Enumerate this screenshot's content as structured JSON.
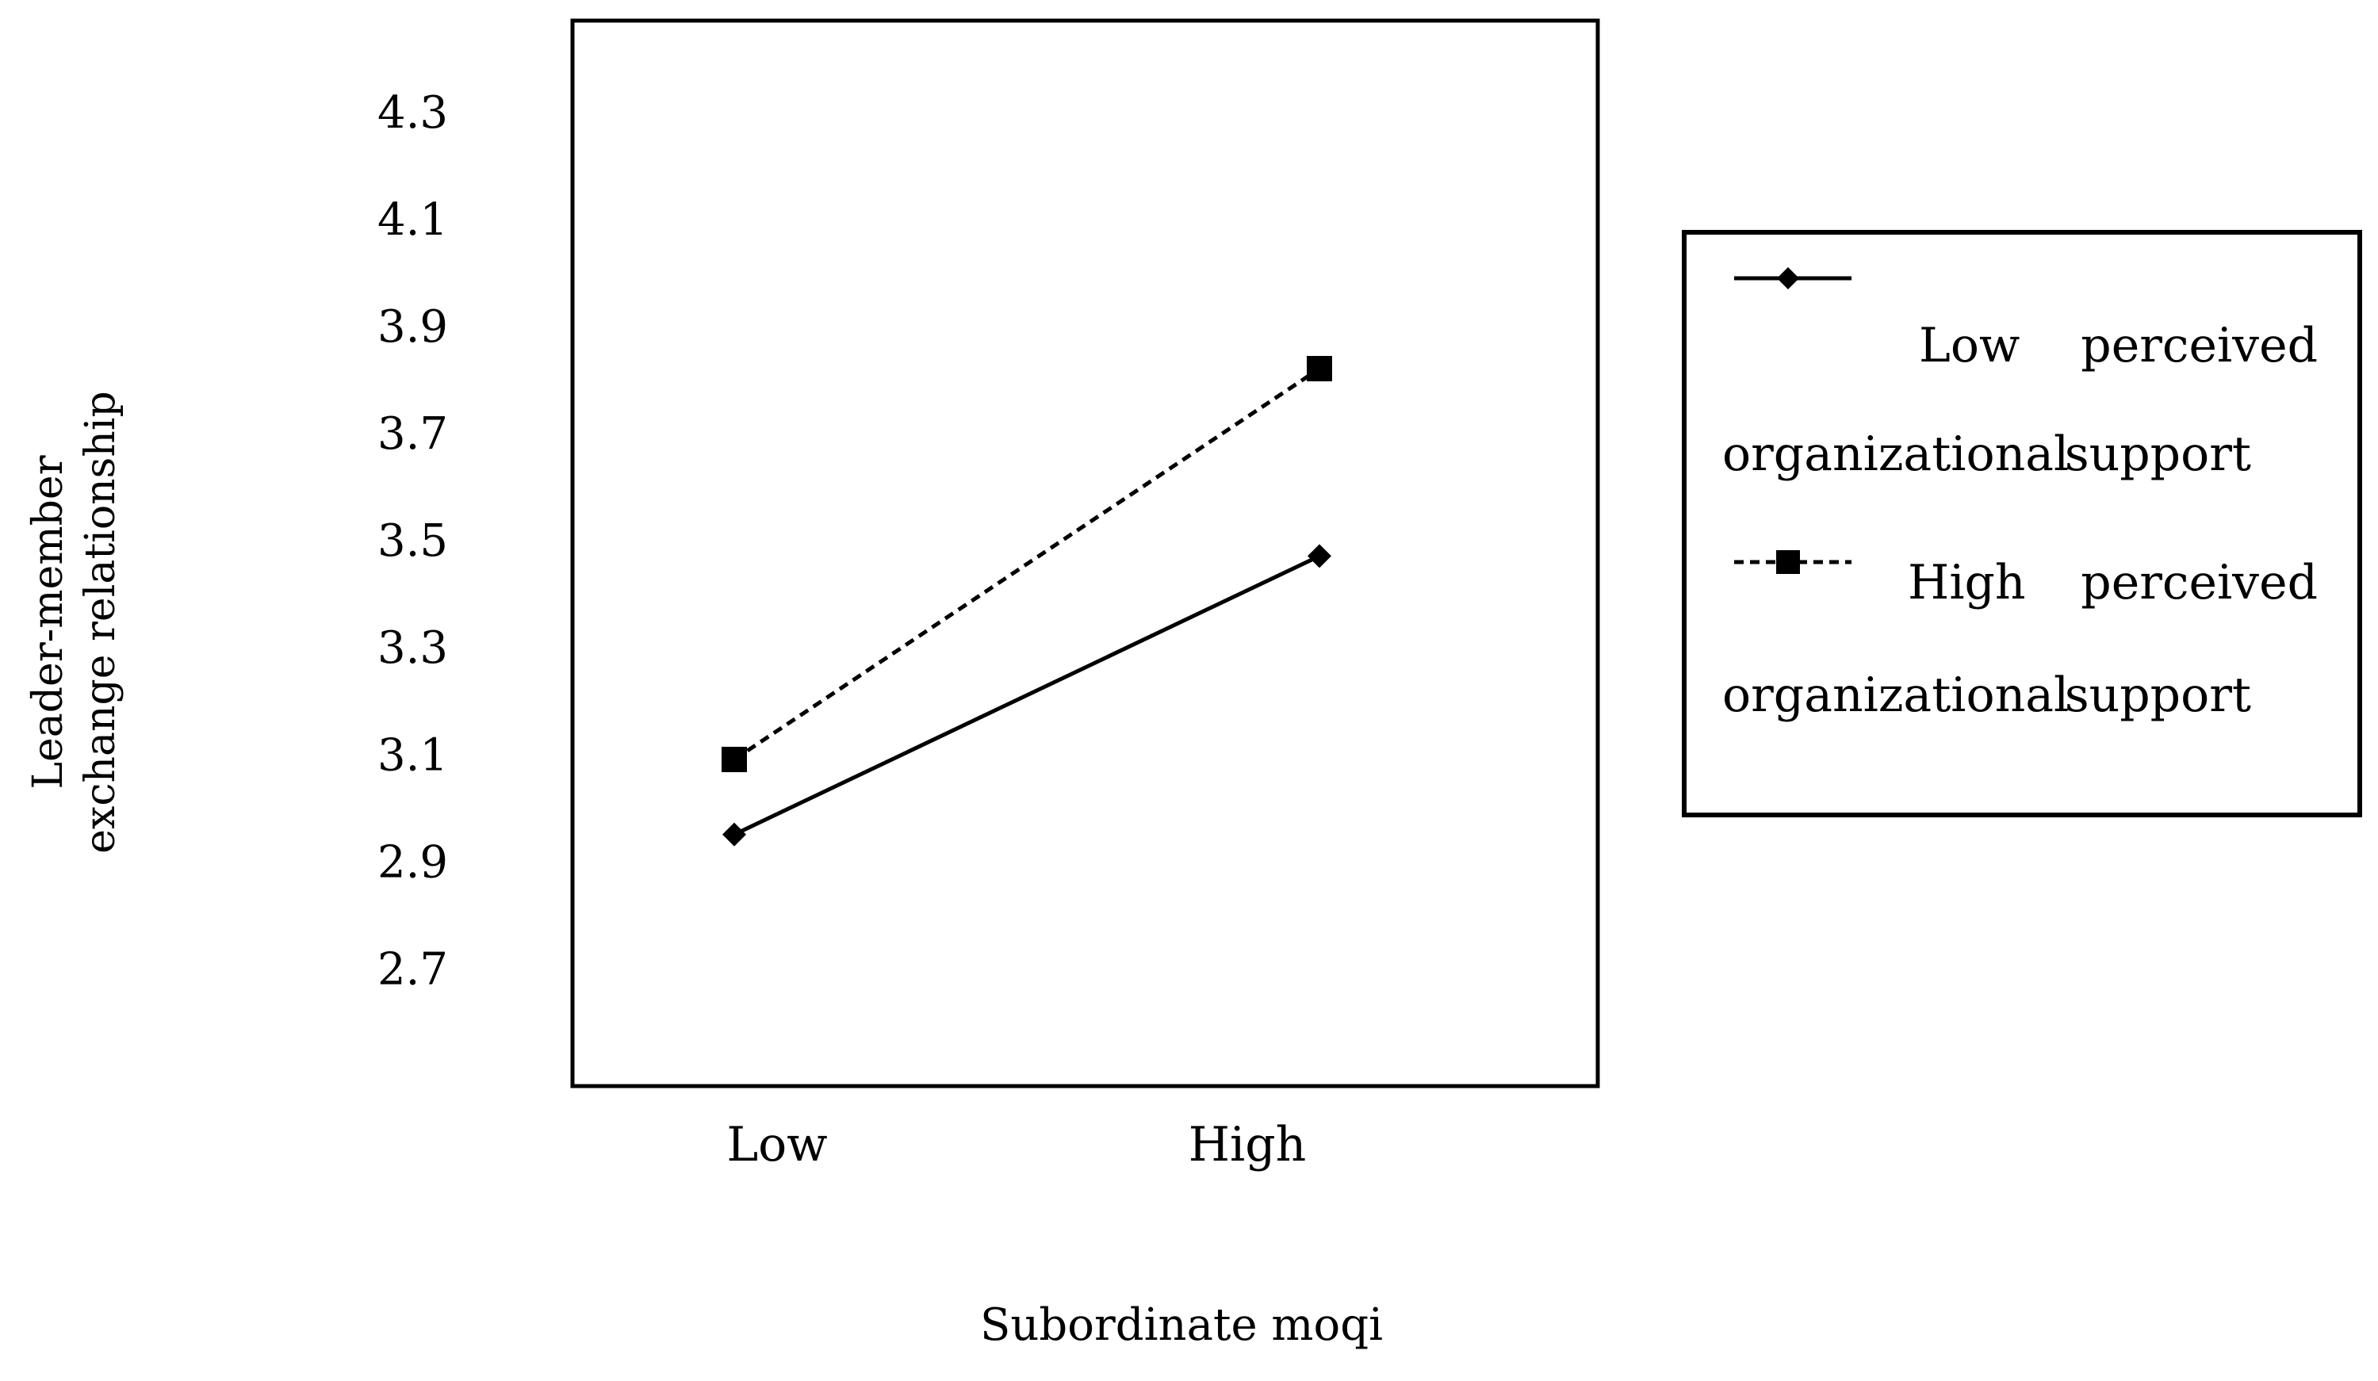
{
  "chart_data": {
    "type": "line",
    "title": "",
    "xlabel": "Subordinate moqi",
    "ylabel_lines": [
      "Leader-member",
      "exchange relationship"
    ],
    "categories": [
      "Low",
      "High"
    ],
    "y_ticks": [
      "2.7",
      "2.9",
      "3.1",
      "3.3",
      "3.5",
      "3.7",
      "3.9",
      "4.1",
      "4.3"
    ],
    "ylim": [
      2.48,
      4.47
    ],
    "grid": false,
    "legend_position": "right",
    "series": [
      {
        "name_line1_left": "Low",
        "name_line1_right": "perceived",
        "name_line2_left": "organizational",
        "name_line2_right": "support",
        "values": [
          2.95,
          3.47
        ],
        "line_style": "solid",
        "marker": "diamond",
        "color": "#000000"
      },
      {
        "name_line1_left": "High",
        "name_line1_right": "perceived",
        "name_line2_left": "organizational",
        "name_line2_right": "support",
        "values": [
          3.09,
          3.82
        ],
        "line_style": "dashed",
        "marker": "square",
        "color": "#000000"
      }
    ]
  }
}
